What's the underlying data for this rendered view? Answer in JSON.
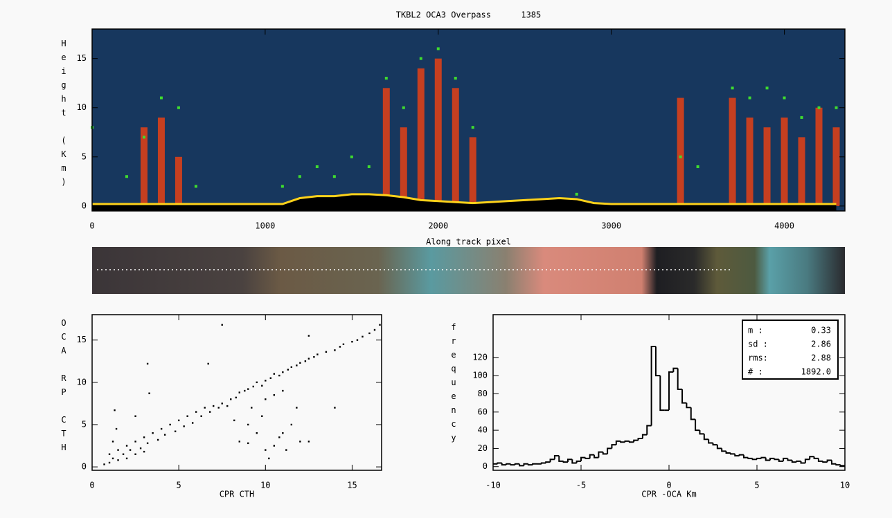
{
  "chart_data": [
    {
      "type": "curtain",
      "title": "TKBL2 OCA3 Overpass      1385",
      "xlabel": "Along track pixel",
      "ylabel": "Height (Km)",
      "background": "#17375e",
      "xlim": [
        0,
        4350
      ],
      "ylim": [
        -0.5,
        18
      ],
      "xticks": [
        0,
        1000,
        2000,
        3000,
        4000
      ],
      "yticks": [
        0,
        5,
        10,
        15
      ],
      "x": [
        0,
        100,
        200,
        300,
        400,
        500,
        600,
        700,
        800,
        900,
        1000,
        1100,
        1200,
        1300,
        1400,
        1500,
        1600,
        1700,
        1800,
        1900,
        2000,
        2100,
        2200,
        2300,
        2400,
        2500,
        2600,
        2700,
        2800,
        2900,
        3000,
        3100,
        3200,
        3300,
        3400,
        3500,
        3600,
        3700,
        3800,
        3900,
        4000,
        4100,
        4200,
        4300
      ],
      "series": [
        {
          "style": "column",
          "color": "#d9401a",
          "values": [
            null,
            null,
            null,
            8,
            9,
            5,
            null,
            null,
            null,
            null,
            null,
            null,
            null,
            null,
            null,
            null,
            null,
            12,
            8,
            14,
            15,
            12,
            7,
            null,
            null,
            null,
            null,
            null,
            null,
            null,
            null,
            null,
            null,
            null,
            11,
            null,
            null,
            11,
            9,
            8,
            9,
            7,
            10,
            8
          ]
        },
        {
          "style": "dot",
          "color": "#3fdc2f",
          "values": [
            8,
            null,
            3,
            7,
            11,
            10,
            2,
            null,
            null,
            null,
            null,
            2,
            3,
            4,
            3,
            5,
            4,
            13,
            10,
            15,
            16,
            13,
            8,
            null,
            null,
            null,
            null,
            null,
            1.2,
            null,
            null,
            null,
            null,
            null,
            5,
            4,
            null,
            12,
            11,
            12,
            11,
            9,
            10,
            10
          ]
        },
        {
          "style": "surface",
          "color": "#ffd21a",
          "values": [
            0.2,
            0.2,
            0.2,
            0.2,
            0.2,
            0.2,
            0.2,
            0.2,
            0.2,
            0.2,
            0.2,
            0.2,
            0.8,
            1,
            1,
            1.2,
            1.2,
            1.1,
            0.9,
            0.6,
            0.5,
            0.4,
            0.3,
            0.4,
            0.5,
            0.6,
            0.7,
            0.8,
            0.7,
            0.3,
            0.2,
            0.2,
            0.2,
            0.2,
            0.2,
            0.2,
            0.2,
            0.2,
            0.2,
            0.2,
            0.2,
            0.2,
            0.2,
            0.2
          ]
        }
      ]
    },
    {
      "type": "scatter",
      "xlabel": "CPR CTH",
      "ylabel": "OCA RP CTH",
      "color": "#000000",
      "xlim": [
        0,
        16.7
      ],
      "ylim": [
        -0.4,
        18
      ],
      "xticks": [
        0,
        5,
        10,
        15
      ],
      "yticks": [
        0,
        5,
        10,
        15
      ],
      "x": [
        1,
        1.2,
        1.5,
        1.8,
        2,
        2.2,
        2.5,
        2.8,
        3,
        3.2,
        3.5,
        3.8,
        4,
        4.2,
        4.5,
        4.8,
        5,
        5.3,
        5.5,
        5.8,
        6,
        6.3,
        6.5,
        6.8,
        7,
        7.3,
        7.5,
        7.8,
        8,
        8.3,
        8.5,
        8.8,
        9,
        9.3,
        9.5,
        9.8,
        10,
        10.3,
        10.5,
        10.8,
        11,
        11.3,
        11.5,
        11.8,
        12,
        12.3,
        12.5,
        12.8,
        13,
        13.5,
        14,
        14.3,
        14.5,
        15,
        15.3,
        15.6,
        16,
        16.3,
        16.6,
        8.5,
        9,
        9.5,
        9.8,
        10,
        10.2,
        10.5,
        10.8,
        11,
        11.2,
        11.5,
        11.8,
        12,
        12.5,
        9.2,
        10,
        10.5,
        11,
        8.2,
        9,
        3.2,
        3.3,
        7.5,
        6.7,
        1.3,
        2.5,
        14,
        12.5,
        0.7,
        1,
        1.5,
        2,
        2.5,
        3,
        1.2,
        1.4
      ],
      "y": [
        0.5,
        1,
        2,
        1.5,
        2.5,
        2,
        3,
        2.2,
        3.5,
        2.8,
        4,
        3.2,
        4.5,
        3.8,
        5,
        4.2,
        5.5,
        4.8,
        6,
        5.2,
        6.5,
        6,
        7,
        6.5,
        7.2,
        7,
        7.5,
        7.2,
        8,
        8.2,
        8.8,
        9,
        9.2,
        9.5,
        10,
        9.6,
        10.2,
        10.5,
        11,
        10.8,
        11.2,
        11.5,
        11.8,
        12,
        12.3,
        12.5,
        12.8,
        13,
        13.3,
        13.6,
        13.8,
        14.2,
        14.5,
        14.8,
        15,
        15.4,
        15.8,
        16.2,
        16.8,
        3,
        5,
        4,
        6,
        2,
        1,
        2.5,
        3.5,
        4,
        2,
        5,
        7,
        3,
        3,
        7,
        8,
        8.5,
        9,
        5.5,
        2.8,
        12.2,
        8.7,
        16.8,
        12.2,
        6.7,
        6,
        7,
        15.5,
        0.3,
        1.5,
        0.8,
        1,
        1.5,
        1.8,
        3,
        4.5
      ]
    },
    {
      "type": "histogram",
      "xlabel": "CPR -OCA Km",
      "ylabel": "frequency",
      "color": "#000000",
      "xlim": [
        -10,
        10
      ],
      "ylim": [
        -4,
        167
      ],
      "xticks": [
        -10,
        -5,
        0,
        5,
        10
      ],
      "yticks": [
        0,
        20,
        40,
        60,
        80,
        100,
        120
      ],
      "bins": [
        -10,
        -9.75,
        -9.5,
        -9.25,
        -9,
        -8.75,
        -8.5,
        -8.25,
        -8,
        -7.75,
        -7.5,
        -7.25,
        -7,
        -6.75,
        -6.5,
        -6.25,
        -6,
        -5.75,
        -5.5,
        -5.25,
        -5,
        -4.75,
        -4.5,
        -4.25,
        -4,
        -3.75,
        -3.5,
        -3.25,
        -3,
        -2.75,
        -2.5,
        -2.25,
        -2,
        -1.75,
        -1.5,
        -1.25,
        -1,
        -0.75,
        -0.5,
        -0.25,
        0,
        0.25,
        0.5,
        0.75,
        1,
        1.25,
        1.5,
        1.75,
        2,
        2.25,
        2.5,
        2.75,
        3,
        3.25,
        3.5,
        3.75,
        4,
        4.25,
        4.5,
        4.75,
        5,
        5.25,
        5.5,
        5.75,
        6,
        6.25,
        6.5,
        6.75,
        7,
        7.25,
        7.5,
        7.75,
        8,
        8.25,
        8.5,
        8.75,
        9,
        9.25,
        9.5,
        9.75,
        10
      ],
      "values": [
        3,
        4,
        2,
        3,
        2,
        3,
        1,
        3,
        2,
        3,
        3,
        4,
        5,
        8,
        12,
        6,
        5,
        8,
        4,
        6,
        10,
        9,
        13,
        10,
        16,
        14,
        20,
        24,
        28,
        27,
        28,
        27,
        29,
        31,
        35,
        45,
        132,
        100,
        62,
        62,
        104,
        108,
        85,
        70,
        65,
        52,
        40,
        36,
        30,
        26,
        24,
        20,
        17,
        15,
        14,
        12,
        13,
        10,
        9,
        8,
        9,
        10,
        7,
        9,
        8,
        6,
        9,
        7,
        5,
        6,
        4,
        8,
        11,
        9,
        6,
        5,
        7,
        3,
        2,
        1
      ],
      "stats": [
        [
          "m :",
          "0.33"
        ],
        [
          "sd :",
          "2.86"
        ],
        [
          "rms:",
          "2.88"
        ],
        [
          "# :",
          "1892.0"
        ]
      ]
    }
  ]
}
